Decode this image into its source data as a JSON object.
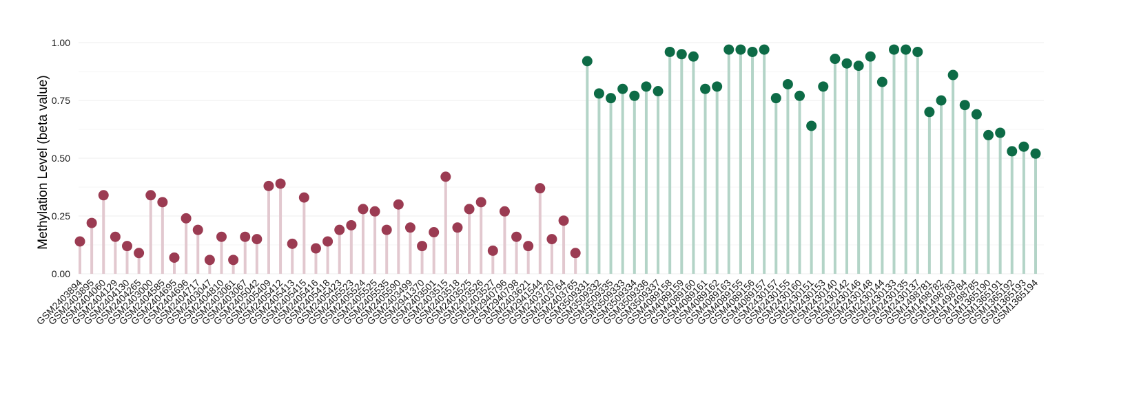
{
  "chart_data": {
    "type": "lollipop",
    "ylabel": "Methylation Level (beta value)",
    "xlabel": "",
    "title": "",
    "ylim": [
      0,
      1
    ],
    "yticks": [
      "0.00",
      "0.25",
      "0.50",
      "0.75",
      "1.00"
    ],
    "grid": true,
    "legend": "none",
    "colors": {
      "group1_point": "#9b3b52",
      "group1_stem": "#e2c8cf",
      "group2_point": "#0d6b46",
      "group2_stem": "#b3d4c7",
      "grid": "#ececec"
    },
    "categories": [
      "GSM2403894",
      "GSM2403895",
      "GSM2404060",
      "GSM2404129",
      "GSM2404130",
      "GSM2404265",
      "GSM2403000",
      "GSM2404585",
      "GSM2404695",
      "GSM2404696",
      "GSM2404717",
      "GSM2403047",
      "GSM2404810",
      "GSM2403061",
      "GSM2403067",
      "GSM2405042",
      "GSM2405409",
      "GSM2405412",
      "GSM2405413",
      "GSM2405415",
      "GSM2405416",
      "GSM2405418",
      "GSM2405423",
      "GSM2405523",
      "GSM2405524",
      "GSM2405525",
      "GSM2405535",
      "GSM2405590",
      "GSM2403499",
      "GSM2941370",
      "GSM2403501",
      "GSM2403515",
      "GSM2403518",
      "GSM2403525",
      "GSM2403526",
      "GSM2403527",
      "GSM2940796",
      "GSM2940798",
      "GSM2403621",
      "GSM2941544",
      "GSM2403720",
      "GSM2403764",
      "GSM2403765",
      "GSM3509331",
      "GSM3509332",
      "GSM3509335",
      "GSM3509333",
      "GSM3509334",
      "GSM3509336",
      "GSM3509337",
      "GSM4089158",
      "GSM4089159",
      "GSM4089160",
      "GSM4089161",
      "GSM4089162",
      "GSM4089163",
      "GSM4089155",
      "GSM4089156",
      "GSM4089157",
      "GSM2430157",
      "GSM2430155",
      "GSM2430160",
      "GSM2430151",
      "GSM2430153",
      "GSM2430140",
      "GSM2430142",
      "GSM2430146",
      "GSM2430148",
      "GSM2430144",
      "GSM2430133",
      "GSM2430135",
      "GSM2430137",
      "GSM1498781",
      "GSM1498782",
      "GSM1498783",
      "GSM1498784",
      "GSM1498785",
      "GSM1365190",
      "GSM1365191",
      "GSM1365192",
      "GSM1365193",
      "GSM1365194"
    ],
    "values": [
      0.14,
      0.22,
      0.34,
      0.16,
      0.12,
      0.09,
      0.34,
      0.31,
      0.07,
      0.24,
      0.19,
      0.06,
      0.16,
      0.06,
      0.16,
      0.15,
      0.38,
      0.39,
      0.13,
      0.33,
      0.11,
      0.14,
      0.19,
      0.21,
      0.28,
      0.27,
      0.19,
      0.3,
      0.2,
      0.12,
      0.18,
      0.42,
      0.2,
      0.28,
      0.31,
      0.1,
      0.27,
      0.16,
      0.12,
      0.37,
      0.15,
      0.23,
      0.09,
      0.92,
      0.78,
      0.76,
      0.8,
      0.77,
      0.81,
      0.79,
      0.96,
      0.95,
      0.94,
      0.8,
      0.81,
      0.97,
      0.97,
      0.96,
      0.97,
      0.76,
      0.82,
      0.77,
      0.64,
      0.81,
      0.93,
      0.91,
      0.9,
      0.94,
      0.83,
      0.97,
      0.97,
      0.96,
      0.7,
      0.75,
      0.86,
      0.73,
      0.69,
      0.6,
      0.61,
      0.53,
      0.55,
      0.52
    ],
    "group1_count": 43
  }
}
